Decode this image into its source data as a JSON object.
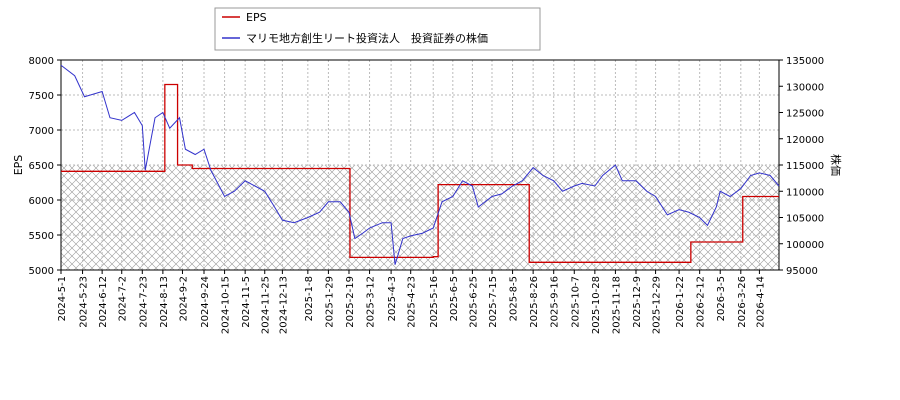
{
  "chart_data": {
    "type": "line",
    "y_label": "EPS",
    "y2_label": "株価",
    "xlim": [
      "2024-5-1",
      "2026-5-4"
    ],
    "xticks": [
      "2024-5-1",
      "2024-5-23",
      "2024-6-12",
      "2024-7-2",
      "2024-7-23",
      "2024-8-13",
      "2024-9-2",
      "2024-9-24",
      "2024-10-15",
      "2024-11-5",
      "2024-11-25",
      "2024-12-13",
      "2025-1-8",
      "2025-1-29",
      "2025-2-19",
      "2025-3-12",
      "2025-4-3",
      "2025-4-23",
      "2025-5-16",
      "2025-6-5",
      "2025-6-25",
      "2025-7-15",
      "2025-8-5",
      "2025-8-26",
      "2025-9-16",
      "2025-10-7",
      "2025-10-28",
      "2025-11-18",
      "2025-12-9",
      "2025-12-29",
      "2026-1-22",
      "2026-2-12",
      "2026-3-5",
      "2026-3-26",
      "2026-4-14"
    ],
    "ylim": [
      5000,
      8000
    ],
    "yticks": [
      5000,
      5500,
      6000,
      6500,
      7000,
      7500,
      8000
    ],
    "y2lim": [
      95000,
      135000
    ],
    "y2ticks": [
      95000,
      100000,
      105000,
      110000,
      115000,
      120000,
      125000,
      130000,
      135000
    ],
    "grid": true,
    "legend": "top",
    "series": [
      {
        "name": "EPS",
        "color": "#cc0000",
        "step": true,
        "x": [
          "2024-5-1",
          "2024-8-15",
          "2024-8-28",
          "2024-9-12",
          "2025-2-20",
          "2025-5-16",
          "2025-5-21",
          "2025-8-22",
          "2026-2-3",
          "2026-3-28",
          "2026-5-4"
        ],
        "values": [
          6410,
          7650,
          6500,
          6450,
          5180,
          5190,
          6220,
          5110,
          5400,
          6050,
          6050
        ]
      },
      {
        "name": "マリモ地方創生リート投資法人　投資証券の株価",
        "color": "#3333cc",
        "axis": "y2",
        "x": [
          "2024-5-1",
          "2024-5-15",
          "2024-5-25",
          "2024-6-12",
          "2024-6-20",
          "2024-7-2",
          "2024-7-15",
          "2024-7-23",
          "2024-7-26",
          "2024-8-5",
          "2024-8-13",
          "2024-8-20",
          "2024-8-30",
          "2024-9-5",
          "2024-9-15",
          "2024-9-24",
          "2024-10-1",
          "2024-10-15",
          "2024-10-25",
          "2024-11-5",
          "2024-11-15",
          "2024-11-25",
          "2024-12-5",
          "2024-12-13",
          "2024-12-25",
          "2025-1-8",
          "2025-1-20",
          "2025-1-29",
          "2025-2-10",
          "2025-2-19",
          "2025-2-25",
          "2025-3-5",
          "2025-3-12",
          "2025-3-25",
          "2025-4-3",
          "2025-4-7",
          "2025-4-15",
          "2025-4-23",
          "2025-5-5",
          "2025-5-16",
          "2025-5-25",
          "2025-6-5",
          "2025-6-15",
          "2025-6-25",
          "2025-7-1",
          "2025-7-15",
          "2025-7-25",
          "2025-8-5",
          "2025-8-15",
          "2025-8-26",
          "2025-9-5",
          "2025-9-16",
          "2025-9-25",
          "2025-10-7",
          "2025-10-15",
          "2025-10-28",
          "2025-11-5",
          "2025-11-18",
          "2025-11-25",
          "2025-12-9",
          "2025-12-20",
          "2025-12-29",
          "2026-1-10",
          "2026-1-22",
          "2026-2-1",
          "2026-2-12",
          "2026-2-20",
          "2026-3-1",
          "2026-3-5",
          "2026-3-15",
          "2026-3-26",
          "2026-4-5",
          "2026-4-14",
          "2026-4-25",
          "2026-5-4"
        ],
        "values": [
          134000,
          132000,
          128000,
          129000,
          124000,
          123500,
          125000,
          122500,
          114000,
          124000,
          125000,
          122000,
          124000,
          118000,
          117000,
          118000,
          114000,
          109000,
          110000,
          112000,
          111000,
          110000,
          107000,
          104500,
          104000,
          105000,
          106000,
          108000,
          108000,
          106000,
          101000,
          102000,
          103000,
          104000,
          104000,
          96000,
          101000,
          101500,
          102000,
          103000,
          108000,
          109000,
          112000,
          111000,
          107000,
          109000,
          109500,
          111000,
          112000,
          114500,
          113000,
          112000,
          110000,
          111000,
          111500,
          111000,
          113000,
          115000,
          112000,
          112000,
          110000,
          109000,
          105500,
          106500,
          106000,
          105000,
          103500,
          107000,
          110000,
          109000,
          110500,
          113000,
          113500,
          113000,
          111000
        ]
      }
    ]
  }
}
